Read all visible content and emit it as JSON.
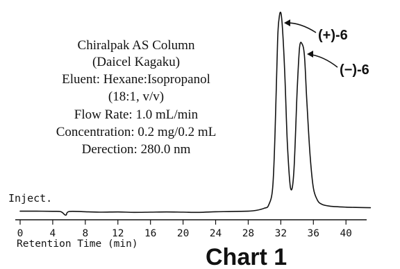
{
  "chart_data": {
    "type": "line",
    "conditions": [
      "Chiralpak AS Column",
      "(Daicel Kagaku)",
      "Eluent: Hexane:Isopropanol",
      "(18:1, v/v)",
      "Flow Rate: 1.0 mL/min",
      "Concentration: 0.2 mg/0.2 mL",
      "Derection: 280.0 nm"
    ],
    "inject_label": "Inject.",
    "xlabel": "Retention Time (min)",
    "xlim": [
      0,
      43
    ],
    "x_ticks": [
      "0",
      "4",
      "8",
      "12",
      "16",
      "20",
      "24",
      "28",
      "32",
      "36",
      "40"
    ],
    "ylim": [
      0,
      100
    ],
    "series": [
      {
        "x": [
          0,
          2,
          4,
          5,
          5.6,
          6,
          8,
          10,
          12,
          14,
          16,
          18,
          20,
          22,
          24,
          26,
          28,
          29,
          30,
          30.5,
          31,
          31.3,
          31.6,
          31.8,
          32,
          32.2,
          32.5,
          32.8,
          33.2,
          33.6,
          34,
          34.3,
          34.6,
          34.9,
          35.2,
          35.6,
          36,
          36.5,
          37,
          38,
          40,
          43
        ],
        "y": [
          0.5,
          0.5,
          0.4,
          0.2,
          -1.5,
          0.3,
          0.2,
          0.0,
          0.1,
          -0.1,
          0.0,
          0.1,
          0.0,
          -0.1,
          0.2,
          0.3,
          0.5,
          0.9,
          2.0,
          3.5,
          12,
          40,
          85,
          97,
          99.5,
          92,
          68,
          35,
          12,
          20,
          60,
          82,
          84,
          78,
          55,
          28,
          12,
          6,
          4,
          3,
          2.5,
          2.2
        ]
      }
    ],
    "peak_labels": [
      {
        "prefix": "(+)-",
        "num": "6",
        "x": 32.0
      },
      {
        "prefix": "(−)-",
        "num": "6",
        "x": 34.6
      }
    ]
  },
  "caption": "Chart 1"
}
